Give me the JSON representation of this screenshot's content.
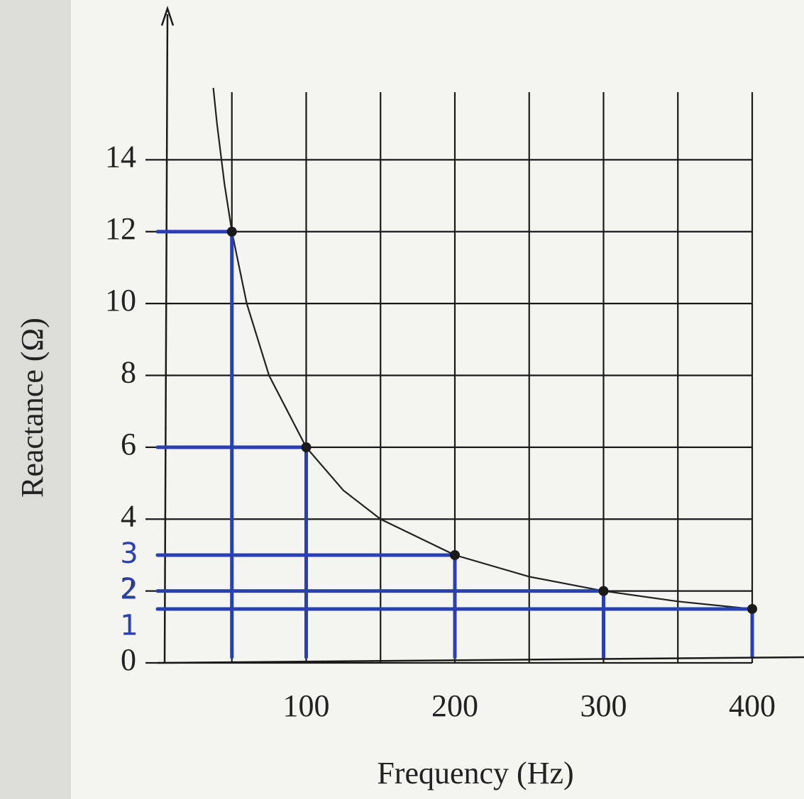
{
  "chart_data": {
    "type": "line",
    "x_label": "Frequency (Hz)",
    "y_label": "Reactance (Ω)",
    "xlim": [
      0,
      400
    ],
    "ylim": [
      0,
      16
    ],
    "xticks": [
      100,
      200,
      300,
      400
    ],
    "xgrid_minor": [
      50,
      150,
      250,
      350
    ],
    "yticks": [
      0,
      2,
      4,
      6,
      8,
      10,
      12,
      14
    ],
    "grid": true,
    "curve": {
      "color": "#222222",
      "x": [
        37.5,
        40,
        45,
        50,
        60,
        75,
        100,
        125,
        150,
        200,
        250,
        300,
        350,
        400
      ],
      "values": [
        16,
        15,
        13.33,
        12,
        10,
        8,
        6,
        4.8,
        4,
        3,
        2.4,
        2,
        1.71,
        1.5
      ]
    },
    "points": {
      "color": "#2a3fb0",
      "x": [
        50,
        100,
        200,
        300,
        400
      ],
      "values": [
        12,
        6,
        3,
        2,
        1.5
      ]
    },
    "handwritten_labels": [
      {
        "value": 3,
        "label": "3"
      },
      {
        "value": 2,
        "label": "2"
      },
      {
        "value": 1,
        "label": "1"
      }
    ]
  }
}
